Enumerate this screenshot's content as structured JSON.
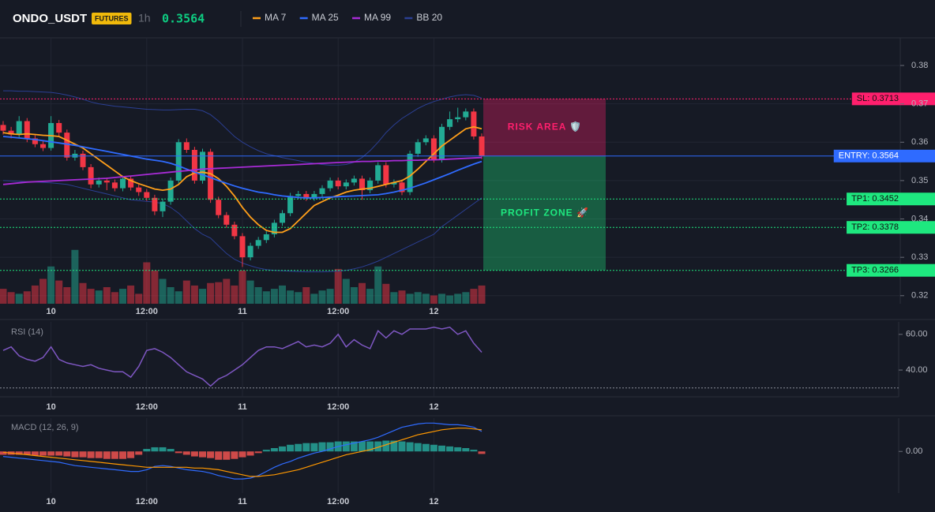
{
  "chart_data": [
    {
      "type": "candlestick",
      "title": "ONDO_USDT",
      "badge": "FUTURES",
      "interval": "1h",
      "price": 0.3564,
      "categories": [
        null,
        null,
        null,
        null,
        null,
        null,
        "10",
        null,
        null,
        null,
        null,
        null,
        null,
        null,
        null,
        null,
        null,
        null,
        "12:00",
        null,
        null,
        null,
        null,
        null,
        null,
        null,
        null,
        null,
        null,
        null,
        "11",
        null,
        null,
        null,
        null,
        null,
        null,
        null,
        null,
        null,
        null,
        null,
        "12:00",
        null,
        null,
        null,
        null,
        null,
        null,
        null,
        null,
        null,
        null,
        null,
        "12",
        null,
        null,
        null,
        null,
        null,
        null
      ],
      "open": [
        0.3645,
        0.363,
        0.362,
        0.3655,
        0.361,
        0.3595,
        0.3585,
        0.365,
        0.3625,
        0.356,
        0.357,
        0.3535,
        0.349,
        0.35,
        0.3495,
        0.348,
        0.3505,
        0.3482,
        0.347,
        0.3455,
        0.342,
        0.3445,
        0.35,
        0.36,
        0.358,
        0.35,
        0.3575,
        0.345,
        0.341,
        0.3385,
        0.3355,
        0.33,
        0.333,
        0.3345,
        0.336,
        0.339,
        0.3415,
        0.346,
        0.3465,
        0.3455,
        0.3465,
        0.348,
        0.35,
        0.3485,
        0.3495,
        0.3505,
        0.3475,
        0.35,
        0.354,
        0.349,
        0.3495,
        0.347,
        0.357,
        0.36,
        0.361,
        0.3555,
        0.364,
        0.366,
        0.3665,
        0.368,
        0.3615
      ],
      "high": [
        0.3655,
        0.364,
        0.3668,
        0.3663,
        0.3618,
        0.3603,
        0.3668,
        0.3658,
        0.3633,
        0.358,
        0.3578,
        0.3543,
        0.3508,
        0.3508,
        0.3503,
        0.3513,
        0.3513,
        0.349,
        0.3478,
        0.3463,
        0.3453,
        0.3508,
        0.3608,
        0.361,
        0.3588,
        0.3583,
        0.3583,
        0.3458,
        0.3418,
        0.3393,
        0.3363,
        0.3338,
        0.3353,
        0.3368,
        0.3398,
        0.3423,
        0.3468,
        0.3473,
        0.3473,
        0.3473,
        0.3488,
        0.3508,
        0.3508,
        0.3503,
        0.3513,
        0.3513,
        0.3508,
        0.3548,
        0.3548,
        0.3503,
        0.3503,
        0.3578,
        0.3608,
        0.3618,
        0.3618,
        0.3648,
        0.368,
        0.369,
        0.3688,
        0.3688,
        0.3623
      ],
      "low": [
        0.362,
        0.361,
        0.3612,
        0.36,
        0.3587,
        0.3577,
        0.3578,
        0.3615,
        0.3552,
        0.3552,
        0.3527,
        0.348,
        0.3482,
        0.3475,
        0.3472,
        0.3472,
        0.3474,
        0.346,
        0.3447,
        0.341,
        0.3405,
        0.3437,
        0.3492,
        0.3572,
        0.3492,
        0.3492,
        0.3442,
        0.3402,
        0.3377,
        0.3347,
        0.3275,
        0.3292,
        0.3322,
        0.3337,
        0.3352,
        0.3382,
        0.3407,
        0.3452,
        0.3447,
        0.3447,
        0.3457,
        0.3472,
        0.3477,
        0.3477,
        0.3487,
        0.345,
        0.3467,
        0.3492,
        0.3482,
        0.3482,
        0.3462,
        0.3462,
        0.3562,
        0.3592,
        0.3547,
        0.3547,
        0.3632,
        0.3652,
        0.3657,
        0.3607,
        0.3556
      ],
      "close": [
        0.363,
        0.362,
        0.3655,
        0.361,
        0.3595,
        0.3585,
        0.365,
        0.3625,
        0.356,
        0.357,
        0.3535,
        0.349,
        0.35,
        0.3495,
        0.348,
        0.3505,
        0.3482,
        0.347,
        0.3455,
        0.342,
        0.3445,
        0.35,
        0.36,
        0.358,
        0.35,
        0.3575,
        0.345,
        0.341,
        0.3385,
        0.3355,
        0.33,
        0.333,
        0.3345,
        0.336,
        0.339,
        0.3415,
        0.346,
        0.3465,
        0.3455,
        0.3465,
        0.348,
        0.35,
        0.3485,
        0.3495,
        0.3505,
        0.3475,
        0.35,
        0.354,
        0.349,
        0.3495,
        0.347,
        0.357,
        0.36,
        0.361,
        0.3555,
        0.364,
        0.366,
        0.3665,
        0.368,
        0.3615,
        0.3564
      ],
      "up_color": "#22ab94",
      "down_color": "#f23645",
      "volume": [
        18,
        14,
        12,
        15,
        22,
        30,
        45,
        28,
        20,
        65,
        25,
        18,
        16,
        20,
        14,
        18,
        22,
        12,
        50,
        40,
        30,
        20,
        15,
        28,
        22,
        18,
        25,
        26,
        30,
        22,
        40,
        28,
        20,
        15,
        18,
        22,
        16,
        14,
        20,
        12,
        16,
        18,
        42,
        30,
        20,
        25,
        18,
        45,
        24,
        14,
        16,
        12,
        14,
        12,
        10,
        12,
        10,
        12,
        14,
        18,
        22
      ],
      "volume_lim": [
        0,
        100
      ],
      "series": [
        {
          "name": "MA 7",
          "color": "#ff9f1a",
          "values": [
            0.3625,
            0.3622,
            0.362,
            0.3622,
            0.362,
            0.3618,
            0.3617,
            0.3615,
            0.3605,
            0.3595,
            0.3585,
            0.357,
            0.3555,
            0.354,
            0.3525,
            0.351,
            0.35,
            0.3492,
            0.3485,
            0.3478,
            0.3475,
            0.3478,
            0.349,
            0.351,
            0.352,
            0.3522,
            0.3518,
            0.3505,
            0.3485,
            0.346,
            0.343,
            0.3405,
            0.3385,
            0.337,
            0.3365,
            0.3365,
            0.3375,
            0.3395,
            0.3415,
            0.3435,
            0.3445,
            0.3455,
            0.3462,
            0.347,
            0.3475,
            0.3478,
            0.348,
            0.3485,
            0.349,
            0.3495,
            0.35,
            0.3512,
            0.353,
            0.355,
            0.357,
            0.359,
            0.3605,
            0.362,
            0.3635,
            0.364,
            0.3635
          ]
        },
        {
          "name": "MA 25",
          "color": "#2f6bff",
          "values": [
            0.3615,
            0.3613,
            0.3611,
            0.3609,
            0.3607,
            0.3604,
            0.3601,
            0.3598,
            0.3595,
            0.3592,
            0.3588,
            0.3584,
            0.358,
            0.3576,
            0.3572,
            0.3568,
            0.3564,
            0.356,
            0.3556,
            0.3553,
            0.355,
            0.3545,
            0.3538,
            0.353,
            0.3522,
            0.3515,
            0.3508,
            0.35,
            0.3493,
            0.3486,
            0.348,
            0.3475,
            0.347,
            0.3467,
            0.3463,
            0.346,
            0.3458,
            0.3456,
            0.3455,
            0.3455,
            0.3456,
            0.3457,
            0.3458,
            0.3459,
            0.346,
            0.3461,
            0.3462,
            0.3463,
            0.3466,
            0.347,
            0.3475,
            0.348,
            0.3487,
            0.3494,
            0.3502,
            0.351,
            0.3518,
            0.3527,
            0.3535,
            0.3543,
            0.355
          ]
        },
        {
          "name": "MA 99",
          "color": "#a82bd6",
          "values": [
            0.349,
            0.3492,
            0.3494,
            0.3496,
            0.3497,
            0.3498,
            0.3499,
            0.35,
            0.3501,
            0.3502,
            0.3503,
            0.3504,
            0.3505,
            0.3506,
            0.3508,
            0.351,
            0.3512,
            0.3514,
            0.3516,
            0.3518,
            0.352,
            0.3522,
            0.3524,
            0.3526,
            0.3528,
            0.353,
            0.3531,
            0.3532,
            0.3533,
            0.3534,
            0.3535,
            0.3536,
            0.3537,
            0.3538,
            0.3539,
            0.354,
            0.3541,
            0.3542,
            0.3543,
            0.3544,
            0.3545,
            0.3546,
            0.3547,
            0.3548,
            0.3549,
            0.355,
            0.355,
            0.3551,
            0.3551,
            0.3552,
            0.3552,
            0.3553,
            0.3553,
            0.3554,
            0.3554,
            0.3555,
            0.3556,
            0.3557,
            0.3558,
            0.3559,
            0.356
          ]
        },
        {
          "name": "BB 20",
          "color": "#2b3f93",
          "upper": [
            0.3734,
            0.3734,
            0.3733,
            0.3733,
            0.3732,
            0.3731,
            0.373,
            0.3727,
            0.3723,
            0.3718,
            0.3712,
            0.3705,
            0.37,
            0.3697,
            0.3694,
            0.3692,
            0.369,
            0.3688,
            0.3686,
            0.3685,
            0.3684,
            0.3684,
            0.3685,
            0.3686,
            0.3686,
            0.3682,
            0.3672,
            0.3655,
            0.3635,
            0.3615,
            0.36,
            0.3588,
            0.3578,
            0.357,
            0.3565,
            0.356,
            0.3556,
            0.3552,
            0.3548,
            0.3545,
            0.3542,
            0.354,
            0.354,
            0.3542,
            0.3548,
            0.356,
            0.3578,
            0.36,
            0.3625,
            0.3645,
            0.3662,
            0.3675,
            0.3688,
            0.3698,
            0.3706,
            0.3712,
            0.3718,
            0.3722,
            0.3724,
            0.3722,
            0.3715
          ],
          "lower": [
            0.35,
            0.3499,
            0.3498,
            0.3497,
            0.3496,
            0.3495,
            0.3494,
            0.3492,
            0.349,
            0.3485,
            0.348,
            0.3475,
            0.347,
            0.3465,
            0.346,
            0.3455,
            0.345,
            0.3448,
            0.3446,
            0.3444,
            0.344,
            0.343,
            0.3415,
            0.3395,
            0.3375,
            0.336,
            0.335,
            0.333,
            0.331,
            0.3295,
            0.3285,
            0.3278,
            0.3272,
            0.3268,
            0.3266,
            0.3265,
            0.3264,
            0.3263,
            0.3262,
            0.3262,
            0.3262,
            0.3263,
            0.3264,
            0.3266,
            0.327,
            0.3275,
            0.3282,
            0.329,
            0.33,
            0.331,
            0.332,
            0.333,
            0.334,
            0.335,
            0.336,
            0.338,
            0.3395,
            0.341,
            0.3425,
            0.344,
            0.3455
          ]
        }
      ],
      "legend": "top",
      "ylim": [
        0.3179,
        0.3872
      ],
      "yticks": [
        0.32,
        0.33,
        0.34,
        0.35,
        0.36,
        0.37,
        0.38
      ],
      "grid": true,
      "levels": [
        {
          "value": 0.3713,
          "label": "SL: 0.3713",
          "color": "#ff1f6d",
          "style": "dotted"
        },
        {
          "value": 0.3564,
          "label": "ENTRY: 0.3564",
          "color": "#2f6bff",
          "style": "solid"
        },
        {
          "value": 0.3452,
          "label": "TP1: 0.3452",
          "color": "#1ee87f",
          "style": "dotted"
        },
        {
          "value": 0.3378,
          "label": "TP2: 0.3378",
          "color": "#1ee87f",
          "style": "dotted"
        },
        {
          "value": 0.3266,
          "label": "TP3: 0.3266",
          "color": "#1ee87f",
          "style": "dotted"
        }
      ],
      "zones": [
        {
          "label": "RISK AREA 🛡️",
          "from": 0.3713,
          "to": 0.3564,
          "color": "#ff1f6d"
        },
        {
          "label": "PROFIT ZONE 🚀",
          "from": 0.3564,
          "to": 0.3266,
          "color": "#1ee87f"
        }
      ]
    },
    {
      "type": "line",
      "title": "RSI (14)",
      "color": "#7e57c2",
      "values": [
        51,
        53,
        48,
        46,
        45,
        47,
        53,
        46,
        44,
        43,
        42,
        43,
        41,
        40,
        39,
        39,
        36,
        42,
        51,
        52,
        50,
        47,
        43,
        39,
        37,
        35,
        31,
        35,
        37,
        40,
        43,
        47,
        51,
        53,
        53,
        52,
        54,
        56,
        53,
        54,
        53,
        55,
        60,
        53,
        57,
        54,
        52,
        62,
        58,
        62,
        60,
        63,
        63,
        63,
        64,
        63,
        64,
        60,
        62,
        55,
        50
      ],
      "ylim": [
        25,
        67
      ],
      "yticks": [
        {
          "value": 40,
          "label": "40.00"
        },
        {
          "value": 60,
          "label": "60.00"
        }
      ],
      "reference_lines": [
        30
      ]
    },
    {
      "type": "macd",
      "title": "MACD (12, 26, 9)",
      "series": [
        {
          "color": "#2f6bff",
          "values": [
            -0.0006,
            -0.0007,
            -0.0008,
            -0.0009,
            -0.001,
            -0.0011,
            -0.0012,
            -0.0013,
            -0.0015,
            -0.0017,
            -0.0018,
            -0.0019,
            -0.002,
            -0.0021,
            -0.0022,
            -0.0023,
            -0.0024,
            -0.0024,
            -0.0022,
            -0.0018,
            -0.0017,
            -0.0018,
            -0.002,
            -0.0022,
            -0.0023,
            -0.0024,
            -0.0026,
            -0.0029,
            -0.0031,
            -0.0033,
            -0.0033,
            -0.0032,
            -0.0029,
            -0.0024,
            -0.0019,
            -0.0015,
            -0.0012,
            -0.0008,
            -0.0005,
            -0.0002,
            0,
            0.0003,
            0.0006,
            0.0008,
            0.001,
            0.0012,
            0.0014,
            0.0017,
            0.0021,
            0.0025,
            0.0029,
            0.0031,
            0.0033,
            0.0034,
            0.0034,
            0.0033,
            0.0032,
            0.0032,
            0.0031,
            0.0029,
            0.0024
          ]
        },
        {
          "color": "#ff9800",
          "values": [
            -0.0001,
            -0.0002,
            -0.0003,
            -0.0004,
            -0.0005,
            -0.0006,
            -0.0007,
            -0.0008,
            -0.0009,
            -0.001,
            -0.0011,
            -0.0012,
            -0.0013,
            -0.0014,
            -0.0015,
            -0.0016,
            -0.0017,
            -0.0018,
            -0.0019,
            -0.0019,
            -0.0019,
            -0.0019,
            -0.0019,
            -0.0019,
            -0.002,
            -0.002,
            -0.0021,
            -0.0022,
            -0.0024,
            -0.0026,
            -0.0028,
            -0.003,
            -0.003,
            -0.0029,
            -0.0028,
            -0.0026,
            -0.0024,
            -0.0022,
            -0.0019,
            -0.0016,
            -0.0013,
            -0.001,
            -0.0007,
            -0.0004,
            -0.0002,
            0,
            0.0002,
            0.0005,
            0.0008,
            0.0011,
            0.0014,
            0.0017,
            0.002,
            0.0022,
            0.0024,
            0.0026,
            0.0027,
            0.0028,
            0.0028,
            0.0027,
            0.0026
          ]
        }
      ],
      "histogram": {
        "up_color": "#26a69a",
        "down_color": "#ef5350",
        "values": [
          -0.0004,
          -0.0004,
          -0.0004,
          -0.0004,
          -0.0005,
          -0.0005,
          -0.0005,
          -0.0005,
          -0.0006,
          -0.0007,
          -0.0007,
          -0.0008,
          -0.0008,
          -0.0009,
          -0.0009,
          -0.0009,
          -0.0008,
          -0.0004,
          0.0003,
          0.0005,
          0.0005,
          0.0003,
          -0.0002,
          -0.0004,
          -0.0006,
          -0.0007,
          -0.0008,
          -0.001,
          -0.001,
          -0.0009,
          -0.0007,
          -0.0005,
          -0.0002,
          0.0002,
          0.0004,
          0.0006,
          0.0008,
          0.0009,
          0.001,
          0.001,
          0.0011,
          0.0011,
          0.0012,
          0.0012,
          0.0012,
          0.0012,
          0.0012,
          0.0012,
          0.0013,
          0.0013,
          0.0012,
          0.0011,
          0.001,
          0.0009,
          0.0008,
          0.0007,
          0.0006,
          0.0005,
          0.0004,
          0.0002,
          -0.0003
        ]
      },
      "ylim": [
        -0.005,
        0.004
      ],
      "yticks": [
        {
          "value": 0,
          "label": "0.00"
        }
      ]
    }
  ]
}
